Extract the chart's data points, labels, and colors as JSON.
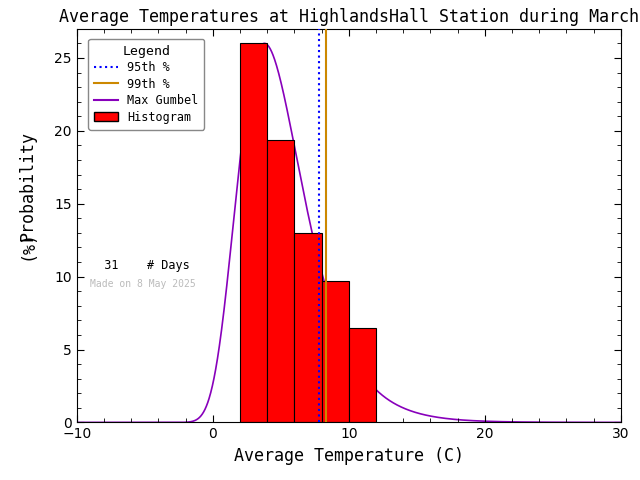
{
  "title": "Average Temperatures at HighlandsHall Station during March",
  "xlabel": "Average Temperature (C)",
  "ylabel_line1": "Probability",
  "ylabel_line2": "(%)",
  "xlim": [
    -10,
    30
  ],
  "ylim": [
    0,
    27
  ],
  "xticks": [
    -10,
    0,
    10,
    20,
    30
  ],
  "yticks": [
    0,
    5,
    10,
    15,
    20,
    25
  ],
  "hist_bins": [
    2,
    4,
    6,
    8,
    10,
    12
  ],
  "hist_heights": [
    26.0,
    19.35,
    13.0,
    9.68,
    6.45
  ],
  "hist_color": "#ff0000",
  "hist_edgecolor": "#000000",
  "gumbel_mu": 3.8,
  "gumbel_beta": 2.4,
  "gumbel_peak": 26.0,
  "pct95_x": 7.8,
  "pct99_x": 8.3,
  "n_days": 31,
  "watermark": "Made on 8 May 2025",
  "legend_title": "Legend",
  "background_color": "#ffffff",
  "gumbel_color": "#8800bb",
  "pct95_color": "#0000ff",
  "pct99_color": "#cc8800",
  "tick_fontsize": 10,
  "label_fontsize": 12,
  "title_fontsize": 12
}
